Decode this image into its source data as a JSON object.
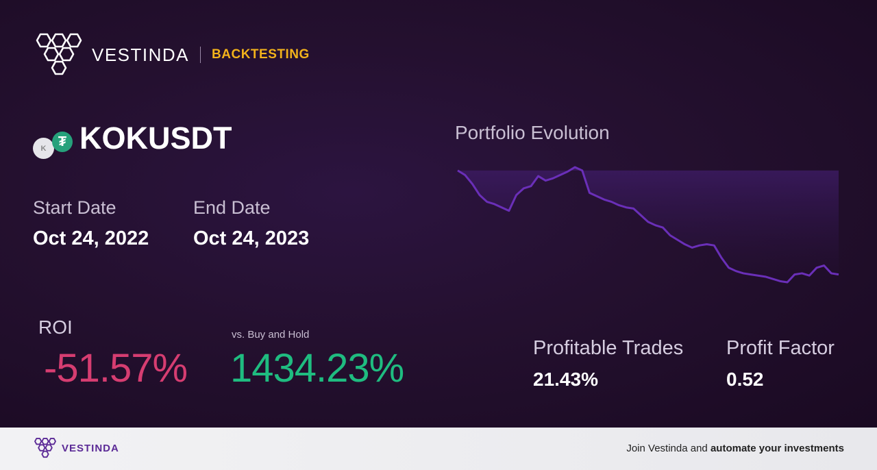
{
  "header": {
    "brand": "VESTINDA",
    "tag": "BACKTESTING"
  },
  "pair": {
    "name": "KOKUSDT",
    "base_icon_letter": "K",
    "quote_icon_glyph": "₮",
    "base_icon": "koku-coin-icon",
    "quote_icon": "tether-coin-icon"
  },
  "dates": {
    "start_label": "Start Date",
    "start_value": "Oct 24, 2022",
    "end_label": "End Date",
    "end_value": "Oct 24, 2023"
  },
  "roi": {
    "label": "ROI",
    "value": "-51.57%",
    "bh_label": "vs. Buy and Hold",
    "bh_value": "1434.23%"
  },
  "stats": {
    "profitable_label": "Profitable Trades",
    "profitable_value": "21.43%",
    "factor_label": "Profit Factor",
    "factor_value": "0.52"
  },
  "footer": {
    "brand": "VESTINDA",
    "cta_prefix": "Join Vestinda and ",
    "cta_bold": "automate your investments"
  },
  "colors": {
    "negative": "#d63d71",
    "positive": "#1fbc80",
    "accent": "#f2b21b",
    "line": "#6a2fb8"
  },
  "chart_data": {
    "type": "area",
    "title": "Portfolio Evolution",
    "xlabel": "",
    "ylabel": "",
    "grid": false,
    "ylim": [
      0,
      100
    ],
    "values": [
      100,
      96,
      88,
      78,
      72,
      70,
      67,
      64,
      78,
      84,
      86,
      95,
      91,
      93,
      96,
      99,
      103,
      100,
      80,
      77,
      74,
      72,
      69,
      67,
      66,
      60,
      54,
      51,
      49,
      42,
      38,
      34,
      31,
      33,
      34,
      33,
      22,
      13,
      10,
      8,
      7,
      6,
      5,
      3,
      1,
      0,
      7,
      8,
      6,
      13,
      15,
      8,
      7
    ]
  }
}
